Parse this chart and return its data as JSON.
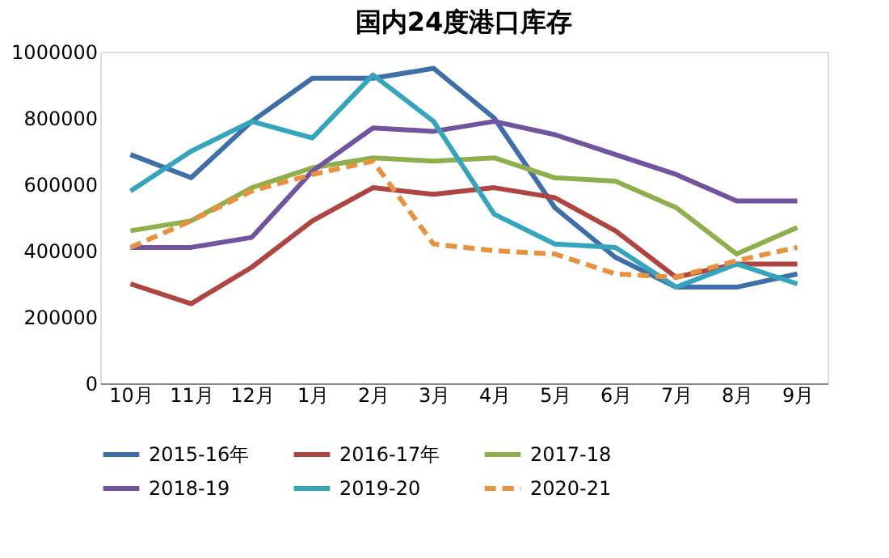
{
  "chart_data": {
    "type": "line",
    "title": "国内24度港口库存",
    "categories": [
      "10月",
      "11月",
      "12月",
      "1月",
      "2月",
      "3月",
      "4月",
      "5月",
      "6月",
      "7月",
      "8月",
      "9月"
    ],
    "series": [
      {
        "name": "2015-16年",
        "color": "#3f6fa8",
        "values": [
          690000,
          620000,
          790000,
          920000,
          920000,
          950000,
          800000,
          530000,
          380000,
          290000,
          290000,
          330000
        ]
      },
      {
        "name": "2016-17年",
        "color": "#b04440",
        "values": [
          300000,
          240000,
          350000,
          490000,
          590000,
          570000,
          590000,
          560000,
          460000,
          320000,
          360000,
          360000
        ]
      },
      {
        "name": "2017-18",
        "color": "#8db04c",
        "values": [
          460000,
          490000,
          590000,
          650000,
          680000,
          670000,
          680000,
          620000,
          610000,
          530000,
          390000,
          470000
        ]
      },
      {
        "name": "2018-19",
        "color": "#7054a0",
        "values": [
          410000,
          410000,
          440000,
          640000,
          770000,
          760000,
          790000,
          750000,
          690000,
          630000,
          550000,
          550000
        ]
      },
      {
        "name": "2019-20",
        "color": "#34a5bd",
        "values": [
          580000,
          700000,
          790000,
          740000,
          930000,
          790000,
          510000,
          420000,
          410000,
          290000,
          360000,
          300000
        ]
      },
      {
        "name": "2020-21",
        "color": "#e8913e",
        "line_style": "dashed",
        "values": [
          410000,
          490000,
          580000,
          630000,
          670000,
          420000,
          400000,
          390000,
          330000,
          320000,
          370000,
          410000
        ]
      }
    ],
    "ylim": [
      0,
      1000000
    ],
    "yticks": [
      0,
      200000,
      400000,
      600000,
      800000,
      1000000
    ],
    "grid": false,
    "legend": "bottom",
    "marker": "none"
  }
}
